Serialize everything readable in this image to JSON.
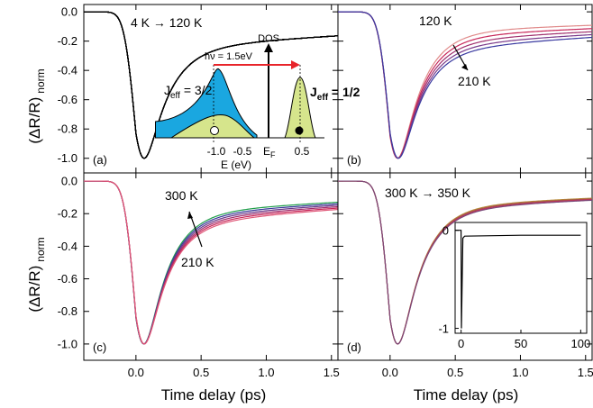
{
  "figure": {
    "ylabel": "(ΔR/R)",
    "ylabel_sub": "norm",
    "xlabel": "Time delay (ps)",
    "xticks": [
      "0.0",
      "0.5",
      "1.0",
      "1.5"
    ],
    "yticks": [
      "0.0",
      "-0.2",
      "-0.4",
      "-0.6",
      "-0.8",
      "-1.0"
    ]
  },
  "chart_data": [
    {
      "panel": "(a)",
      "type": "line",
      "xlim": [
        -0.4,
        1.55
      ],
      "ylim": [
        -1.1,
        0.05
      ],
      "annotation": "4 K → 120 K",
      "temperatures": [
        4,
        120
      ],
      "curve_count": 12,
      "series_colors": [
        "#000000"
      ],
      "trough": {
        "x": 0.0,
        "y": -1.0
      },
      "y_at_1_5ps_range": [
        -0.12,
        -0.12
      ],
      "inset": {
        "type": "density-of-states schematic",
        "ylabel": "DOS",
        "xlabel": "E (eV)",
        "xticks": [
          "-1.0",
          "-0.5",
          "0.5"
        ],
        "fermi_label": "E",
        "fermi_sub": "F",
        "transition_label": "hν = 1.5eV",
        "band_left_label": "J",
        "band_left_sub": "eff",
        "band_left_value": " = 3/2",
        "band_right_label": "J",
        "band_right_sub": "eff",
        "band_right_value": " = 1/2",
        "colors": {
          "jeff32": "#1aa7e0",
          "jeff12": "#d6e58c",
          "arrow": "#e8242a"
        }
      }
    },
    {
      "panel": "(b)",
      "type": "line",
      "xlim": [
        -0.4,
        1.55
      ],
      "ylim": [
        -1.1,
        0.05
      ],
      "annotation_top": "120 K",
      "annotation_bottom": "210 K",
      "temperatures": [
        120,
        210
      ],
      "series_colors": [
        "#e08a8a",
        "#c8285a",
        "#a0306e",
        "#7a3a8a",
        "#3a3aa0"
      ],
      "trough": {
        "x": 0.0,
        "y": -1.0
      },
      "y_at_1_5ps_range": [
        -0.06,
        -0.13
      ]
    },
    {
      "panel": "(c)",
      "type": "line",
      "xlim": [
        -0.4,
        1.55
      ],
      "ylim": [
        -1.1,
        0.05
      ],
      "annotation_top": "300 K",
      "annotation_bottom": "210 K",
      "temperatures": [
        210,
        300
      ],
      "series_colors": [
        "#1f9e4a",
        "#3a3a9a",
        "#6a3a8a",
        "#a0306e",
        "#c8285a",
        "#e05a7a"
      ],
      "trough": {
        "x": 0.0,
        "y": -1.0
      },
      "y_at_1_5ps_range": [
        -0.09,
        -0.13
      ]
    },
    {
      "panel": "(d)",
      "type": "line",
      "xlim": [
        -0.4,
        1.55
      ],
      "ylim": [
        -1.1,
        0.05
      ],
      "annotation": "300 K → 350 K",
      "temperatures": [
        300,
        350
      ],
      "series_colors": [
        "#b88a3a",
        "#a05a4a",
        "#c0305a",
        "#7a4a7a"
      ],
      "trough": {
        "x": 0.0,
        "y": -1.0
      },
      "y_at_1_5ps_range": [
        -0.07,
        -0.08
      ],
      "inset": {
        "type": "line",
        "xticks": [
          "0",
          "50",
          "100"
        ],
        "yticks": [
          "0",
          "-1"
        ],
        "xlim": [
          -5,
          105
        ],
        "ylim": [
          -1.05,
          0.08
        ],
        "points": [
          [
            -5,
            0.0
          ],
          [
            0,
            0.0
          ],
          [
            0.3,
            -1.0
          ],
          [
            1.5,
            -0.08
          ],
          [
            3,
            -0.06
          ],
          [
            50,
            -0.05
          ],
          [
            100,
            -0.05
          ]
        ]
      }
    }
  ]
}
